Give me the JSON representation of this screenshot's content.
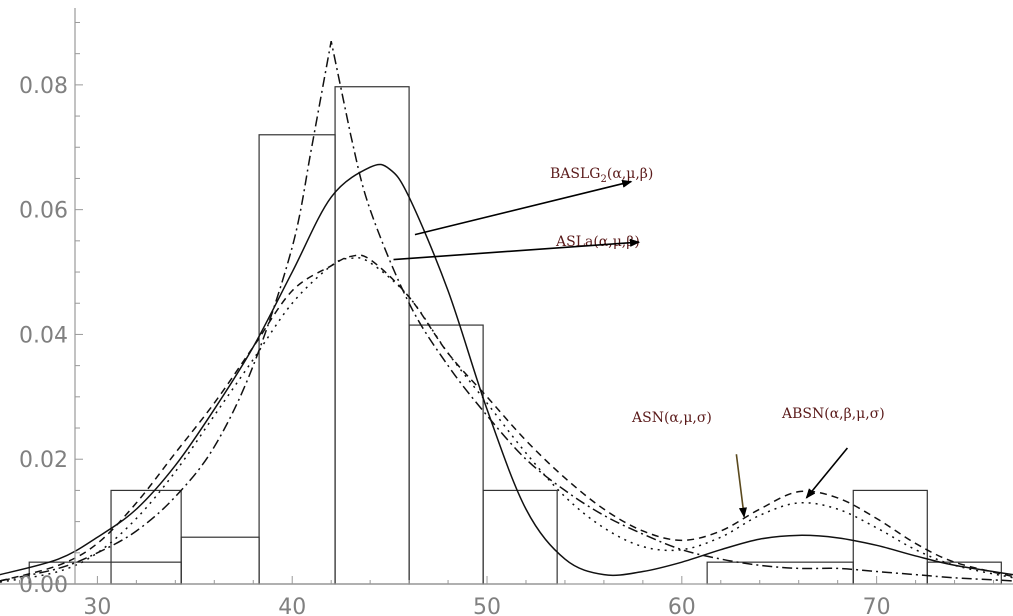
{
  "chart_data": {
    "type": "bar+line",
    "xlim": [
      25,
      77
    ],
    "ylim": [
      0,
      0.092
    ],
    "xticks": [
      30,
      40,
      50,
      60,
      70
    ],
    "yticks": [
      0.0,
      0.02,
      0.04,
      0.06,
      0.08
    ],
    "ytick_labels": [
      "0.00",
      "0.02",
      "0.04",
      "0.06",
      "0.08"
    ],
    "grid": false,
    "histogram": [
      {
        "x0": 25,
        "x1": 30.5,
        "value": 0.0
      },
      {
        "x0": 26.5,
        "x1": 34.3,
        "value": 0.0035
      },
      {
        "x0": 30.7,
        "x1": 34.3,
        "value": 0.015
      },
      {
        "x0": 34.3,
        "x1": 38.3,
        "value": 0.0075
      },
      {
        "x0": 38.3,
        "x1": 42.2,
        "value": 0.072
      },
      {
        "x0": 42.2,
        "x1": 46.0,
        "value": 0.0797
      },
      {
        "x0": 46.0,
        "x1": 49.8,
        "value": 0.0415
      },
      {
        "x0": 49.8,
        "x1": 53.6,
        "value": 0.015
      },
      {
        "x0": 61.3,
        "x1": 68.8,
        "value": 0.0035
      },
      {
        "x0": 68.8,
        "x1": 72.6,
        "value": 0.015
      },
      {
        "x0": 72.6,
        "x1": 76.4,
        "value": 0.0035
      }
    ],
    "series": [
      {
        "name": "BASLG2(α,μ,β)",
        "style": "solid",
        "x": [
          25,
          28,
          30,
          32,
          34,
          36,
          38,
          40,
          42,
          44,
          45,
          46,
          48,
          50,
          52,
          54,
          56,
          58,
          60,
          62,
          64,
          66,
          68,
          70,
          72,
          74,
          77
        ],
        "y": [
          0.0015,
          0.004,
          0.0075,
          0.012,
          0.019,
          0.028,
          0.038,
          0.05,
          0.062,
          0.0668,
          0.0665,
          0.062,
          0.047,
          0.028,
          0.012,
          0.004,
          0.0015,
          0.002,
          0.0035,
          0.0055,
          0.0072,
          0.0078,
          0.0074,
          0.0062,
          0.0045,
          0.003,
          0.0015
        ]
      },
      {
        "name": "ASLa(α,μ,β)",
        "style": "dashdot",
        "x": [
          25,
          28,
          30,
          32,
          34,
          36,
          38,
          40,
          41,
          42,
          43,
          44,
          46,
          48,
          50,
          52,
          54,
          56,
          58,
          60,
          62,
          64,
          66,
          68,
          70,
          72,
          74,
          77
        ],
        "y": [
          0.0005,
          0.0025,
          0.005,
          0.0085,
          0.014,
          0.022,
          0.035,
          0.054,
          0.07,
          0.087,
          0.072,
          0.06,
          0.045,
          0.035,
          0.027,
          0.02,
          0.015,
          0.011,
          0.008,
          0.0055,
          0.004,
          0.003,
          0.0025,
          0.0025,
          0.002,
          0.0015,
          0.001,
          0.0005
        ]
      },
      {
        "name": "ASN(α,μ,σ)",
        "style": "dashed",
        "x": [
          25,
          28,
          30,
          32,
          34,
          36,
          38,
          40,
          42,
          43,
          44,
          46,
          48,
          50,
          52,
          54,
          56,
          58,
          60,
          62,
          64,
          66,
          68,
          70,
          72,
          74,
          77
        ],
        "y": [
          0.0005,
          0.003,
          0.0065,
          0.013,
          0.021,
          0.029,
          0.038,
          0.047,
          0.051,
          0.0525,
          0.052,
          0.046,
          0.037,
          0.03,
          0.023,
          0.017,
          0.012,
          0.0085,
          0.007,
          0.0085,
          0.012,
          0.0148,
          0.0138,
          0.0105,
          0.0065,
          0.0035,
          0.0012
        ]
      },
      {
        "name": "ABSN(α,β,μ,σ)",
        "style": "dotted",
        "x": [
          25,
          28,
          30,
          32,
          34,
          36,
          38,
          40,
          42,
          43,
          44,
          46,
          48,
          50,
          52,
          54,
          56,
          58,
          60,
          62,
          64,
          66,
          68,
          70,
          72,
          74,
          77
        ],
        "y": [
          0.0003,
          0.002,
          0.005,
          0.0105,
          0.018,
          0.027,
          0.036,
          0.045,
          0.051,
          0.0522,
          0.0515,
          0.046,
          0.037,
          0.029,
          0.021,
          0.014,
          0.009,
          0.006,
          0.0055,
          0.0075,
          0.011,
          0.013,
          0.012,
          0.009,
          0.0055,
          0.003,
          0.001
        ]
      }
    ],
    "annotations": [
      {
        "text": "BASLG",
        "subscript": "2",
        "after": "(α,μ,β)",
        "arrow_from": [
          57.4,
          0.0645
        ],
        "arrow_to": [
          46.3,
          0.056
        ]
      },
      {
        "text": "ASLa(α,μ,β)",
        "arrow_from": [
          57.8,
          0.0548
        ],
        "arrow_to": [
          45.2,
          0.052
        ]
      },
      {
        "text": "ASN(α,μ,σ)",
        "arrow_from": [
          63.2,
          0.0108
        ],
        "arrow_to": [
          62.8,
          0.0208
        ]
      },
      {
        "text": "ABSN(α,β,μ,σ)",
        "arrow_from": [
          66.4,
          0.0138
        ],
        "arrow_to": [
          68.5,
          0.0218
        ]
      }
    ]
  }
}
